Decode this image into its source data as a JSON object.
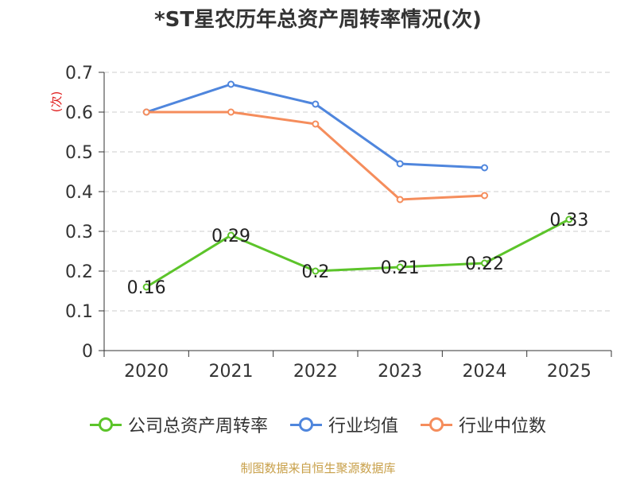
{
  "chart_data": {
    "type": "line",
    "title": "*ST星农历年总资产周转率情况(次)",
    "ylabel": "(次)",
    "xlabel": "",
    "categories": [
      "2020",
      "2021",
      "2022",
      "2023",
      "2024",
      "2025"
    ],
    "yticks": [
      "0",
      "0.1",
      "0.2",
      "0.3",
      "0.4",
      "0.5",
      "0.6",
      "0.7"
    ],
    "ylim": [
      0,
      0.7
    ],
    "grid": true,
    "legend_position": "bottom",
    "series": [
      {
        "name": "公司总资产周转率",
        "color": "#5cc42a",
        "values": [
          0.16,
          0.29,
          0.2,
          0.21,
          0.22,
          0.33
        ],
        "labels": [
          "0.16",
          "0.29",
          "0.2",
          "0.21",
          "0.22",
          "0.33"
        ]
      },
      {
        "name": "行业均值",
        "color": "#4f86dd",
        "values": [
          0.6,
          0.67,
          0.62,
          0.47,
          0.46,
          null
        ]
      },
      {
        "name": "行业中位数",
        "color": "#f58d5c",
        "values": [
          0.6,
          0.6,
          0.57,
          0.38,
          0.39,
          null
        ]
      }
    ]
  },
  "source_note": "制图数据来自恒生聚源数据库"
}
